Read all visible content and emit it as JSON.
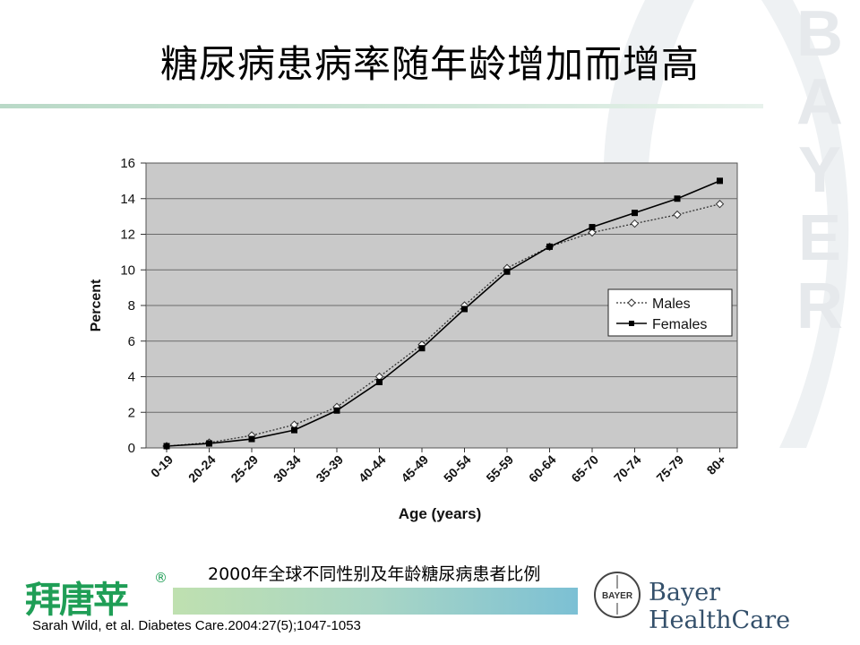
{
  "slide": {
    "title": "糖尿病患病率随年龄增加而增高",
    "caption": "2000年全球不同性别及年龄糖尿病患者比例",
    "citation": "Sarah Wild, et al. Diabetes Care.2004:27(5);1047-1053",
    "brand_logo_text": "拜唐苹",
    "brand_logo_mark": "®",
    "brand_color": "#1f9e56",
    "watermark_letters": [
      "B",
      "A",
      "Y",
      "E",
      "R"
    ],
    "bayer_cross_text": "BAYER",
    "company_name": "Bayer HealthCare",
    "company_color": "#34506b"
  },
  "chart_data": {
    "type": "line",
    "title": "",
    "xlabel": "Age (years)",
    "ylabel": "Percent",
    "ylim": [
      0,
      16
    ],
    "yticks": [
      0,
      2,
      4,
      6,
      8,
      10,
      12,
      14,
      16
    ],
    "grid": true,
    "legend_position": "right",
    "categories": [
      "0-19",
      "20-24",
      "25-29",
      "30-34",
      "35-39",
      "40-44",
      "45-49",
      "50-54",
      "55-59",
      "60-64",
      "65-70",
      "70-74",
      "75-79",
      "80+"
    ],
    "series": [
      {
        "name": "Males",
        "marker": "open-diamond",
        "line_style": "dotted",
        "color": "#333333",
        "values": [
          0.1,
          0.3,
          0.7,
          1.3,
          2.3,
          4.0,
          5.8,
          8.0,
          10.1,
          11.3,
          12.1,
          12.6,
          13.1,
          13.7
        ]
      },
      {
        "name": "Females",
        "marker": "filled-square",
        "line_style": "solid",
        "color": "#000000",
        "values": [
          0.1,
          0.25,
          0.5,
          1.0,
          2.1,
          3.7,
          5.6,
          7.8,
          9.9,
          11.3,
          12.4,
          13.2,
          14.0,
          15.0
        ]
      }
    ]
  }
}
